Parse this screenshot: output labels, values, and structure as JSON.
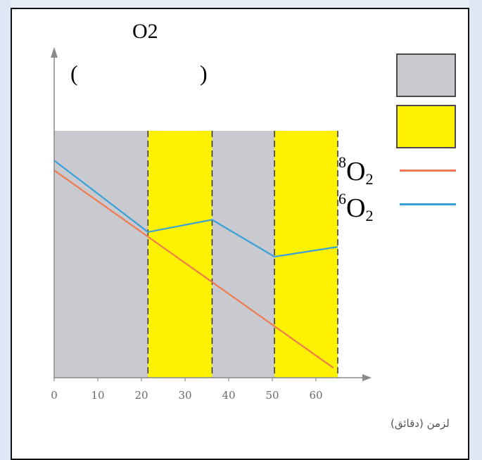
{
  "figure": {
    "y_title": "O2",
    "y_paren_left": "(",
    "y_paren_right": ")"
  },
  "legend": {
    "items": [
      {
        "kind": "swatch",
        "color": "#c9c9d0"
      },
      {
        "kind": "swatch",
        "color": "#fff200"
      },
      {
        "kind": "line",
        "iso_mass": "18",
        "element": "O",
        "subscript": "2",
        "color": "#f07a50"
      },
      {
        "kind": "line",
        "iso_mass": "16",
        "element": "O",
        "subscript": "2",
        "color": "#3aa0d8"
      }
    ]
  },
  "chart_data": {
    "type": "line",
    "xlabel": "لزمن (دقائق)",
    "x_ticks": [
      "0",
      "10",
      "20",
      "30",
      "40",
      "50",
      "60"
    ],
    "xlim": [
      0,
      65
    ],
    "grid": false,
    "periods": [
      {
        "start": 0,
        "end": 21.5,
        "color": "#c9c9d0"
      },
      {
        "start": 21.5,
        "end": 36.2,
        "color": "#fff200"
      },
      {
        "start": 36.2,
        "end": 50.5,
        "color": "#c9c9d0"
      },
      {
        "start": 50.5,
        "end": 65,
        "color": "#fff200"
      }
    ],
    "series": [
      {
        "name": "18O2",
        "color": "#f07a50",
        "x": [
          0,
          64
        ],
        "y": [
          8.4,
          0.4
        ]
      },
      {
        "name": "16O2",
        "color": "#3aa0d8",
        "x": [
          0,
          21.5,
          36.2,
          50.5,
          65
        ],
        "y": [
          8.8,
          5.9,
          6.4,
          4.9,
          5.3
        ]
      }
    ],
    "ylim": [
      0,
      10
    ]
  }
}
